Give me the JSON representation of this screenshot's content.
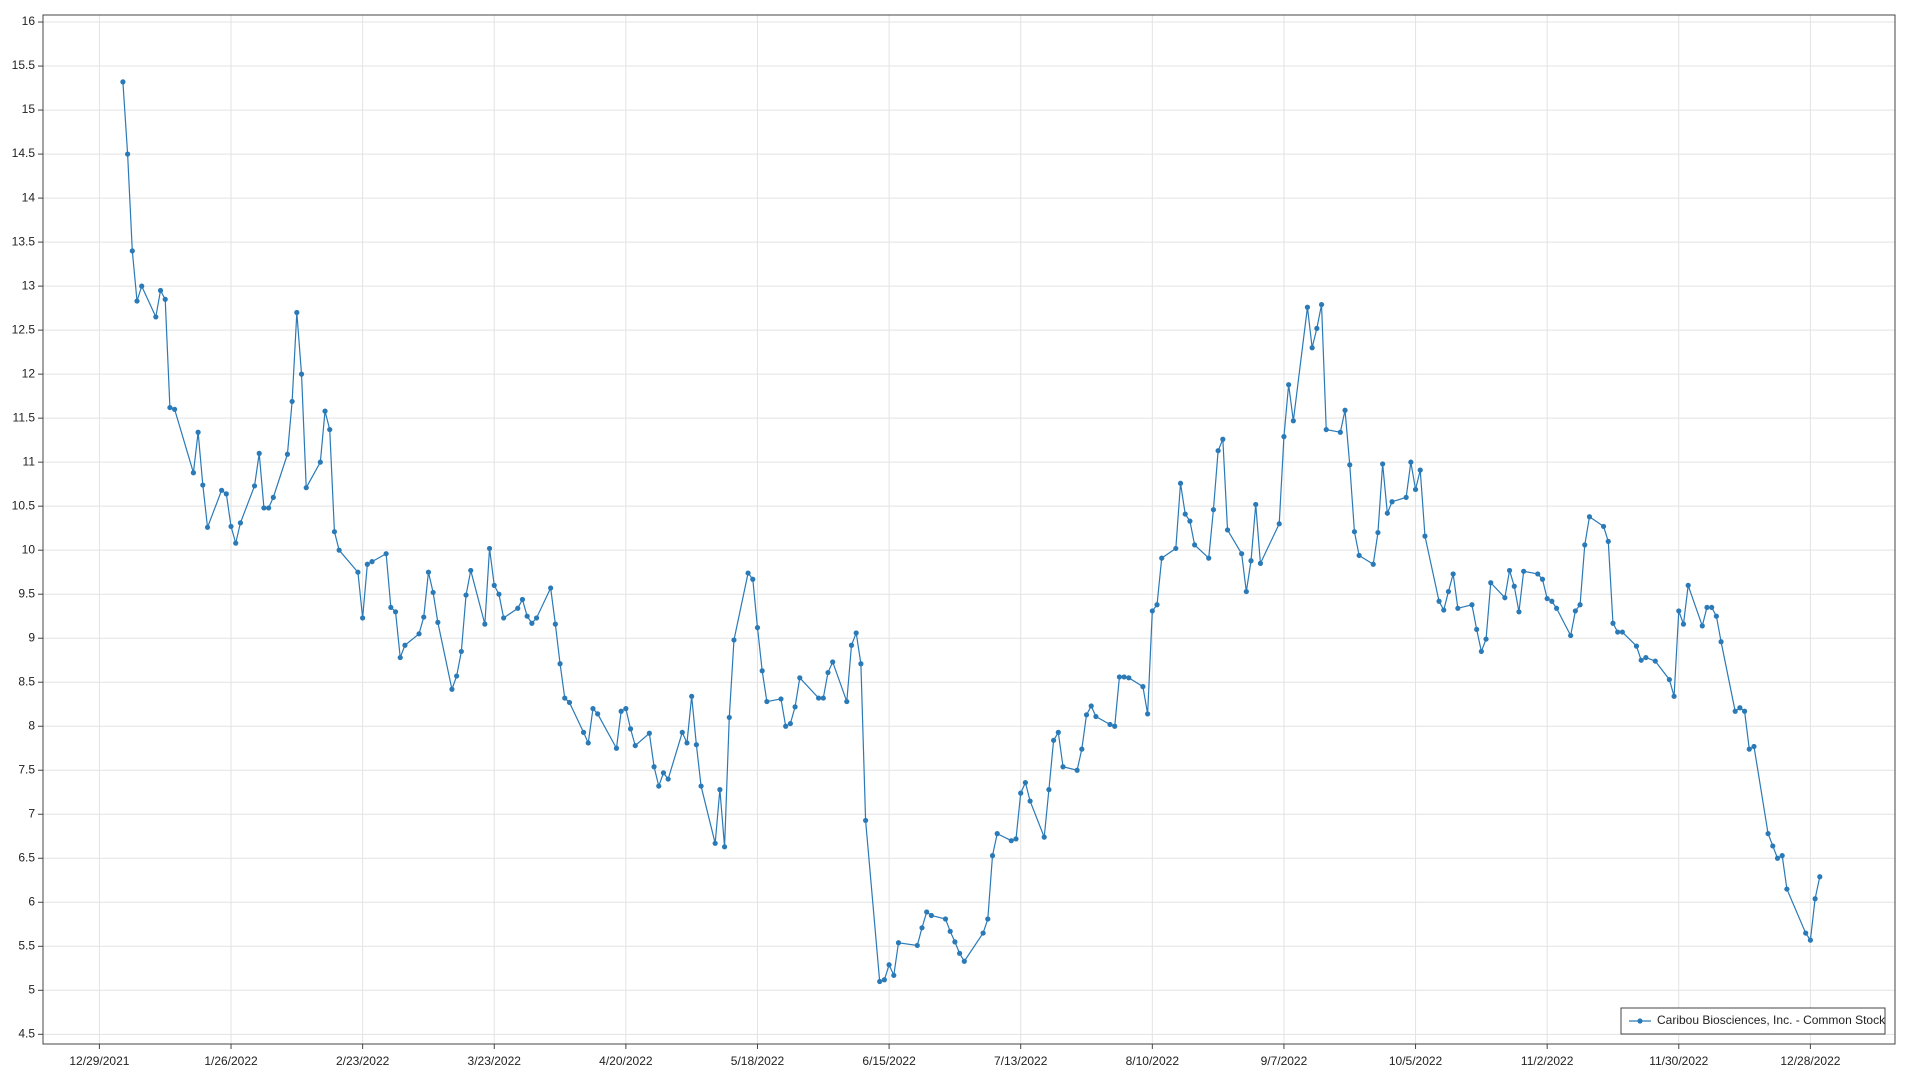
{
  "chart_data": {
    "type": "line",
    "x": [
      "1/3/2022",
      "1/4/2022",
      "1/5/2022",
      "1/6/2022",
      "1/7/2022",
      "1/10/2022",
      "1/11/2022",
      "1/12/2022",
      "1/13/2022",
      "1/14/2022",
      "1/18/2022",
      "1/19/2022",
      "1/20/2022",
      "1/21/2022",
      "1/24/2022",
      "1/25/2022",
      "1/26/2022",
      "1/27/2022",
      "1/28/2022",
      "1/31/2022",
      "2/1/2022",
      "2/2/2022",
      "2/3/2022",
      "2/4/2022",
      "2/7/2022",
      "2/8/2022",
      "2/9/2022",
      "2/10/2022",
      "2/11/2022",
      "2/14/2022",
      "2/15/2022",
      "2/16/2022",
      "2/17/2022",
      "2/18/2022",
      "2/22/2022",
      "2/23/2022",
      "2/24/2022",
      "2/25/2022",
      "2/28/2022",
      "3/1/2022",
      "3/2/2022",
      "3/3/2022",
      "3/4/2022",
      "3/7/2022",
      "3/8/2022",
      "3/9/2022",
      "3/10/2022",
      "3/11/2022",
      "3/14/2022",
      "3/15/2022",
      "3/16/2022",
      "3/17/2022",
      "3/18/2022",
      "3/21/2022",
      "3/22/2022",
      "3/23/2022",
      "3/24/2022",
      "3/25/2022",
      "3/28/2022",
      "3/29/2022",
      "3/30/2022",
      "3/31/2022",
      "4/1/2022",
      "4/4/2022",
      "4/5/2022",
      "4/6/2022",
      "4/7/2022",
      "4/8/2022",
      "4/11/2022",
      "4/12/2022",
      "4/13/2022",
      "4/14/2022",
      "4/18/2022",
      "4/19/2022",
      "4/20/2022",
      "4/21/2022",
      "4/22/2022",
      "4/25/2022",
      "4/26/2022",
      "4/27/2022",
      "4/28/2022",
      "4/29/2022",
      "5/2/2022",
      "5/3/2022",
      "5/4/2022",
      "5/5/2022",
      "5/6/2022",
      "5/9/2022",
      "5/10/2022",
      "5/11/2022",
      "5/12/2022",
      "5/13/2022",
      "5/16/2022",
      "5/17/2022",
      "5/18/2022",
      "5/19/2022",
      "5/20/2022",
      "5/23/2022",
      "5/24/2022",
      "5/25/2022",
      "5/26/2022",
      "5/27/2022",
      "5/31/2022",
      "6/1/2022",
      "6/2/2022",
      "6/3/2022",
      "6/6/2022",
      "6/7/2022",
      "6/8/2022",
      "6/9/2022",
      "6/10/2022",
      "6/13/2022",
      "6/14/2022",
      "6/15/2022",
      "6/16/2022",
      "6/17/2022",
      "6/21/2022",
      "6/22/2022",
      "6/23/2022",
      "6/24/2022",
      "6/27/2022",
      "6/28/2022",
      "6/29/2022",
      "6/30/2022",
      "7/1/2022",
      "7/5/2022",
      "7/6/2022",
      "7/7/2022",
      "7/8/2022",
      "7/11/2022",
      "7/12/2022",
      "7/13/2022",
      "7/14/2022",
      "7/15/2022",
      "7/18/2022",
      "7/19/2022",
      "7/20/2022",
      "7/21/2022",
      "7/22/2022",
      "7/25/2022",
      "7/26/2022",
      "7/27/2022",
      "7/28/2022",
      "7/29/2022",
      "8/1/2022",
      "8/2/2022",
      "8/3/2022",
      "8/4/2022",
      "8/5/2022",
      "8/8/2022",
      "8/9/2022",
      "8/10/2022",
      "8/11/2022",
      "8/12/2022",
      "8/15/2022",
      "8/16/2022",
      "8/17/2022",
      "8/18/2022",
      "8/19/2022",
      "8/22/2022",
      "8/23/2022",
      "8/24/2022",
      "8/25/2022",
      "8/26/2022",
      "8/29/2022",
      "8/30/2022",
      "8/31/2022",
      "9/1/2022",
      "9/2/2022",
      "9/6/2022",
      "9/7/2022",
      "9/8/2022",
      "9/9/2022",
      "9/12/2022",
      "9/13/2022",
      "9/14/2022",
      "9/15/2022",
      "9/16/2022",
      "9/19/2022",
      "9/20/2022",
      "9/21/2022",
      "9/22/2022",
      "9/23/2022",
      "9/26/2022",
      "9/27/2022",
      "9/28/2022",
      "9/29/2022",
      "9/30/2022",
      "10/3/2022",
      "10/4/2022",
      "10/5/2022",
      "10/6/2022",
      "10/7/2022",
      "10/10/2022",
      "10/11/2022",
      "10/12/2022",
      "10/13/2022",
      "10/14/2022",
      "10/17/2022",
      "10/18/2022",
      "10/19/2022",
      "10/20/2022",
      "10/21/2022",
      "10/24/2022",
      "10/25/2022",
      "10/26/2022",
      "10/27/2022",
      "10/28/2022",
      "10/31/2022",
      "11/1/2022",
      "11/2/2022",
      "11/3/2022",
      "11/4/2022",
      "11/7/2022",
      "11/8/2022",
      "11/9/2022",
      "11/10/2022",
      "11/11/2022",
      "11/14/2022",
      "11/15/2022",
      "11/16/2022",
      "11/17/2022",
      "11/18/2022",
      "11/21/2022",
      "11/22/2022",
      "11/23/2022",
      "11/25/2022",
      "11/28/2022",
      "11/29/2022",
      "11/30/2022",
      "12/1/2022",
      "12/2/2022",
      "12/5/2022",
      "12/6/2022",
      "12/7/2022",
      "12/8/2022",
      "12/9/2022",
      "12/12/2022",
      "12/13/2022",
      "12/14/2022",
      "12/15/2022",
      "12/16/2022",
      "12/19/2022",
      "12/20/2022",
      "12/21/2022",
      "12/22/2022",
      "12/23/2022",
      "12/27/2022",
      "12/28/2022",
      "12/29/2022",
      "12/30/2022"
    ],
    "series": [
      {
        "name": "Caribou Biosciences, Inc. - Common Stock",
        "color": "#2a7ab8",
        "values": [
          15.32,
          14.5,
          13.4,
          12.83,
          13.0,
          12.65,
          12.95,
          12.85,
          11.62,
          11.6,
          10.88,
          11.34,
          10.74,
          10.26,
          10.68,
          10.64,
          10.27,
          10.08,
          10.31,
          10.73,
          11.1,
          10.48,
          10.48,
          10.6,
          11.09,
          11.69,
          12.7,
          12.0,
          10.71,
          11.0,
          11.58,
          11.37,
          10.21,
          10.0,
          9.75,
          9.23,
          9.84,
          9.87,
          9.96,
          9.35,
          9.3,
          8.78,
          8.92,
          9.05,
          9.24,
          9.75,
          9.52,
          9.18,
          8.42,
          8.57,
          8.85,
          9.49,
          9.77,
          9.16,
          10.02,
          9.6,
          9.5,
          9.23,
          9.34,
          9.44,
          9.25,
          9.17,
          9.23,
          9.57,
          9.16,
          8.71,
          8.32,
          8.27,
          7.93,
          7.81,
          8.2,
          8.14,
          7.75,
          8.17,
          8.2,
          7.97,
          7.78,
          7.92,
          7.54,
          7.32,
          7.47,
          7.4,
          7.93,
          7.81,
          8.34,
          7.79,
          7.32,
          6.67,
          7.28,
          6.63,
          8.1,
          8.98,
          9.74,
          9.67,
          9.12,
          8.63,
          8.28,
          8.31,
          8.0,
          8.03,
          8.22,
          8.55,
          8.32,
          8.32,
          8.61,
          8.73,
          8.28,
          8.92,
          9.06,
          8.71,
          6.93,
          5.1,
          5.12,
          5.29,
          5.17,
          5.54,
          5.51,
          5.71,
          5.89,
          5.85,
          5.81,
          5.67,
          5.55,
          5.42,
          5.33,
          5.65,
          5.81,
          6.53,
          6.78,
          6.7,
          6.72,
          7.24,
          7.36,
          7.15,
          6.74,
          7.28,
          7.84,
          7.93,
          7.54,
          7.5,
          7.74,
          8.13,
          8.23,
          8.11,
          8.02,
          8.0,
          8.56,
          8.56,
          8.55,
          8.45,
          8.14,
          9.31,
          9.38,
          9.91,
          10.02,
          10.76,
          10.41,
          10.33,
          10.06,
          9.91,
          10.46,
          11.13,
          11.26,
          10.23,
          9.96,
          9.53,
          9.88,
          10.52,
          9.85,
          10.3,
          11.29,
          11.88,
          11.47,
          12.76,
          12.3,
          12.52,
          12.79,
          11.37,
          11.34,
          11.59,
          10.97,
          10.21,
          9.94,
          9.84,
          10.2,
          10.98,
          10.42,
          10.55,
          10.6,
          11.0,
          10.69,
          10.91,
          10.16,
          9.42,
          9.32,
          9.53,
          9.73,
          9.34,
          9.38,
          9.1,
          8.85,
          8.99,
          9.63,
          9.46,
          9.77,
          9.59,
          9.3,
          9.76,
          9.73,
          9.67,
          9.45,
          9.42,
          9.34,
          9.03,
          9.31,
          9.38,
          10.06,
          10.38,
          10.27,
          10.1,
          9.17,
          9.07,
          9.07,
          8.91,
          8.75,
          8.78,
          8.74,
          8.53,
          8.34,
          9.31,
          9.16,
          9.6,
          9.14,
          9.35,
          9.35,
          9.25,
          8.96,
          8.17,
          8.21,
          8.17,
          7.74,
          7.77,
          6.78,
          6.64,
          6.5,
          6.53,
          6.15,
          5.65,
          5.57,
          6.04,
          6.29
        ]
      }
    ],
    "xlim": [
      "12/17/2021",
      "1/15/2023"
    ],
    "xticks": [
      "12/29/2021",
      "1/26/2022",
      "2/23/2022",
      "3/23/2022",
      "4/20/2022",
      "5/18/2022",
      "6/15/2022",
      "7/13/2022",
      "8/10/2022",
      "9/7/2022",
      "10/5/2022",
      "11/2/2022",
      "11/30/2022",
      "12/28/2022"
    ],
    "ylim": [
      4.39,
      16.08
    ],
    "yticks": [
      4.5,
      5,
      5.5,
      6,
      6.5,
      7,
      7.5,
      8,
      8.5,
      9,
      9.5,
      10,
      10.5,
      11,
      11.5,
      12,
      12.5,
      13,
      13.5,
      14,
      14.5,
      15,
      15.5,
      16
    ],
    "grid": true,
    "legend": "lower right"
  }
}
